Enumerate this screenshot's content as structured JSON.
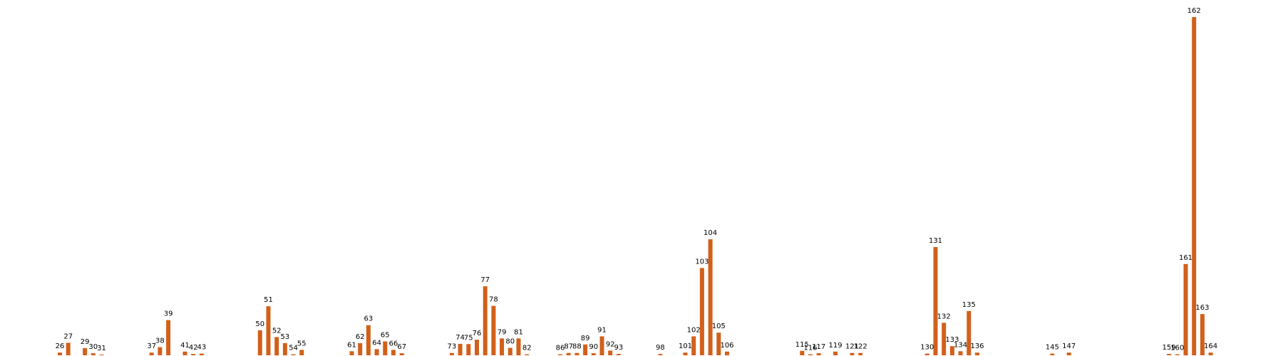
{
  "chart_data": {
    "type": "bar",
    "title": "",
    "xlabel": "",
    "ylabel": "",
    "grid": false,
    "legend": "none",
    "bar_color": "#d2601a",
    "ylim": [
      0,
      100
    ],
    "categories": [
      "26",
      "27",
      "29",
      "30",
      "31",
      "37",
      "38",
      "39",
      "41",
      "42",
      "43",
      "50",
      "51",
      "52",
      "53",
      "54",
      "55",
      "61",
      "62",
      "63",
      "64",
      "65",
      "66",
      "67",
      "73",
      "74",
      "75",
      "76",
      "77",
      "78",
      "79",
      "80",
      "81",
      "82",
      "86",
      "87",
      "88",
      "89",
      "90",
      "91",
      "92",
      "93",
      "98",
      "101",
      "102",
      "103",
      "104",
      "105",
      "106",
      "115",
      "116",
      "117",
      "119",
      "121",
      "122",
      "130",
      "131",
      "132",
      "133",
      "134",
      "135",
      "136",
      "145",
      "147",
      "159",
      "160",
      "161",
      "162",
      "163",
      "164"
    ],
    "values": [
      0.8,
      3.7,
      2.1,
      0.6,
      0.2,
      0.8,
      2.4,
      10.4,
      1.1,
      0.4,
      0.5,
      7.4,
      14.5,
      5.4,
      3.6,
      0.3,
      1.6,
      1.2,
      3.6,
      8.9,
      1.8,
      4.1,
      1.6,
      0.6,
      0.7,
      3.4,
      3.3,
      4.6,
      20.4,
      14.6,
      5.0,
      2.2,
      5.0,
      0.3,
      0.3,
      0.7,
      0.7,
      3.2,
      0.6,
      5.6,
      1.4,
      0.4,
      0.4,
      0.8,
      5.6,
      25.8,
      34.3,
      6.7,
      1.1,
      1.3,
      0.3,
      0.6,
      1.1,
      0.7,
      0.7,
      0.5,
      32.0,
      9.6,
      2.7,
      1.2,
      13.1,
      0.8,
      0.5,
      0.8,
      0.4,
      0.3,
      27.0,
      100.0,
      12.2,
      0.8
    ]
  }
}
